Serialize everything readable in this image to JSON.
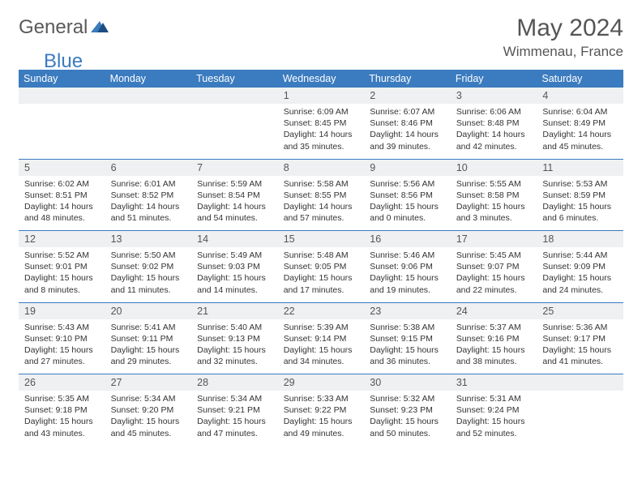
{
  "logo": {
    "general": "General",
    "blue": "Blue"
  },
  "title": "May 2024",
  "location": "Wimmenau, France",
  "colors": {
    "header_bg": "#3b7bbf",
    "header_text": "#ffffff",
    "daynum_bg": "#eef0f1",
    "text": "#333333",
    "title_text": "#555555",
    "border": "#3b7bbf"
  },
  "weekdays": [
    "Sunday",
    "Monday",
    "Tuesday",
    "Wednesday",
    "Thursday",
    "Friday",
    "Saturday"
  ],
  "weeks": [
    [
      null,
      null,
      null,
      {
        "n": "1",
        "sr": "6:09 AM",
        "ss": "8:45 PM",
        "dl": "14 hours and 35 minutes."
      },
      {
        "n": "2",
        "sr": "6:07 AM",
        "ss": "8:46 PM",
        "dl": "14 hours and 39 minutes."
      },
      {
        "n": "3",
        "sr": "6:06 AM",
        "ss": "8:48 PM",
        "dl": "14 hours and 42 minutes."
      },
      {
        "n": "4",
        "sr": "6:04 AM",
        "ss": "8:49 PM",
        "dl": "14 hours and 45 minutes."
      }
    ],
    [
      {
        "n": "5",
        "sr": "6:02 AM",
        "ss": "8:51 PM",
        "dl": "14 hours and 48 minutes."
      },
      {
        "n": "6",
        "sr": "6:01 AM",
        "ss": "8:52 PM",
        "dl": "14 hours and 51 minutes."
      },
      {
        "n": "7",
        "sr": "5:59 AM",
        "ss": "8:54 PM",
        "dl": "14 hours and 54 minutes."
      },
      {
        "n": "8",
        "sr": "5:58 AM",
        "ss": "8:55 PM",
        "dl": "14 hours and 57 minutes."
      },
      {
        "n": "9",
        "sr": "5:56 AM",
        "ss": "8:56 PM",
        "dl": "15 hours and 0 minutes."
      },
      {
        "n": "10",
        "sr": "5:55 AM",
        "ss": "8:58 PM",
        "dl": "15 hours and 3 minutes."
      },
      {
        "n": "11",
        "sr": "5:53 AM",
        "ss": "8:59 PM",
        "dl": "15 hours and 6 minutes."
      }
    ],
    [
      {
        "n": "12",
        "sr": "5:52 AM",
        "ss": "9:01 PM",
        "dl": "15 hours and 8 minutes."
      },
      {
        "n": "13",
        "sr": "5:50 AM",
        "ss": "9:02 PM",
        "dl": "15 hours and 11 minutes."
      },
      {
        "n": "14",
        "sr": "5:49 AM",
        "ss": "9:03 PM",
        "dl": "15 hours and 14 minutes."
      },
      {
        "n": "15",
        "sr": "5:48 AM",
        "ss": "9:05 PM",
        "dl": "15 hours and 17 minutes."
      },
      {
        "n": "16",
        "sr": "5:46 AM",
        "ss": "9:06 PM",
        "dl": "15 hours and 19 minutes."
      },
      {
        "n": "17",
        "sr": "5:45 AM",
        "ss": "9:07 PM",
        "dl": "15 hours and 22 minutes."
      },
      {
        "n": "18",
        "sr": "5:44 AM",
        "ss": "9:09 PM",
        "dl": "15 hours and 24 minutes."
      }
    ],
    [
      {
        "n": "19",
        "sr": "5:43 AM",
        "ss": "9:10 PM",
        "dl": "15 hours and 27 minutes."
      },
      {
        "n": "20",
        "sr": "5:41 AM",
        "ss": "9:11 PM",
        "dl": "15 hours and 29 minutes."
      },
      {
        "n": "21",
        "sr": "5:40 AM",
        "ss": "9:13 PM",
        "dl": "15 hours and 32 minutes."
      },
      {
        "n": "22",
        "sr": "5:39 AM",
        "ss": "9:14 PM",
        "dl": "15 hours and 34 minutes."
      },
      {
        "n": "23",
        "sr": "5:38 AM",
        "ss": "9:15 PM",
        "dl": "15 hours and 36 minutes."
      },
      {
        "n": "24",
        "sr": "5:37 AM",
        "ss": "9:16 PM",
        "dl": "15 hours and 38 minutes."
      },
      {
        "n": "25",
        "sr": "5:36 AM",
        "ss": "9:17 PM",
        "dl": "15 hours and 41 minutes."
      }
    ],
    [
      {
        "n": "26",
        "sr": "5:35 AM",
        "ss": "9:18 PM",
        "dl": "15 hours and 43 minutes."
      },
      {
        "n": "27",
        "sr": "5:34 AM",
        "ss": "9:20 PM",
        "dl": "15 hours and 45 minutes."
      },
      {
        "n": "28",
        "sr": "5:34 AM",
        "ss": "9:21 PM",
        "dl": "15 hours and 47 minutes."
      },
      {
        "n": "29",
        "sr": "5:33 AM",
        "ss": "9:22 PM",
        "dl": "15 hours and 49 minutes."
      },
      {
        "n": "30",
        "sr": "5:32 AM",
        "ss": "9:23 PM",
        "dl": "15 hours and 50 minutes."
      },
      {
        "n": "31",
        "sr": "5:31 AM",
        "ss": "9:24 PM",
        "dl": "15 hours and 52 minutes."
      },
      null
    ]
  ],
  "labels": {
    "sunrise": "Sunrise:",
    "sunset": "Sunset:",
    "daylight": "Daylight:"
  }
}
